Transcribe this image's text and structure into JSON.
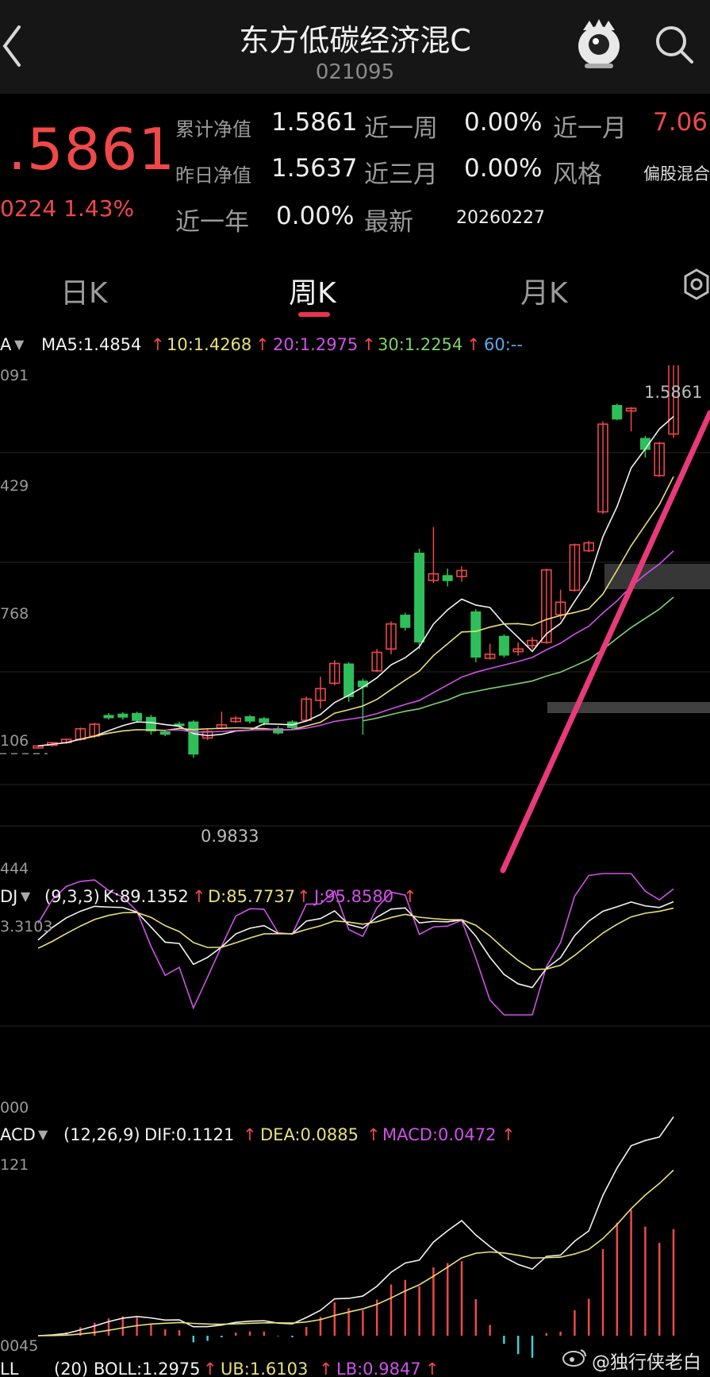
{
  "header": {
    "title": "东方低碳经济混C",
    "code": "021095"
  },
  "quote": {
    "price": ".5861",
    "change": "0224 1.43%",
    "cum_nav_label": "累计净值",
    "cum_nav_value": "1.5861",
    "prev_nav_label": "昨日净值",
    "prev_nav_value": "1.5637",
    "week_label": "近一周",
    "week_value": "0.00%",
    "month_label": "近一月",
    "month_value": "7.06",
    "three_month_label": "近三月",
    "three_month_value": "0.00%",
    "style_label": "风格",
    "style_value": "偏股混合",
    "year_label": "近一年",
    "year_value": "0.00%",
    "latest_label": "最新",
    "latest_value": "20260227"
  },
  "tabs": {
    "day": "日K",
    "week": "周K",
    "month": "月K"
  },
  "ma_bar": {
    "prefix": "A",
    "ma5": "MA5:1.4854",
    "ma10": "10:1.4268",
    "ma20": "20:1.2975",
    "ma30": "30:1.2254",
    "ma60": "60:--",
    "arrow": "↑"
  },
  "price_axis": {
    "top": "091",
    "l1": "429",
    "l2": "768",
    "l3": "106",
    "bottom": "444",
    "high_label": "1.5861",
    "low_label": "0.9833"
  },
  "kdj_bar": {
    "prefix": "DJ",
    "params": "(9,3,3)",
    "k": "K:89.1352",
    "d": "D:85.7737",
    "j": "J:95.8580",
    "arrow": "↑"
  },
  "kdj_axis": {
    "top": "3.3103",
    "bottom": "000"
  },
  "macd_bar": {
    "prefix": "ACD",
    "params": "(12,26,9)",
    "dif": "DIF:0.1121",
    "dea": "DEA:0.0885",
    "macd": "MACD:0.0472",
    "arrow": "↑"
  },
  "macd_axis": {
    "top": "121",
    "bottom": "0045"
  },
  "boll_bar": {
    "prefix": "LL",
    "params": "(20)",
    "boll": "BOLL:1.2975",
    "ub": "UB:1.6103",
    "lb": "LB:0.9847",
    "arrow": "↑"
  },
  "watermark": "@独行侠老白",
  "colors": {
    "up": "#f04848",
    "down": "#2fbf5a",
    "accent": "#e8334f",
    "ma5": "#f2f2f2",
    "ma10": "#e8e07a",
    "ma20": "#d052e8",
    "ma30": "#7fd16b",
    "ma60": "#5aa8e8"
  },
  "chart_data": {
    "type": "candlestick",
    "period": "weekly",
    "candles": [
      {
        "o": 1.0,
        "c": 1.003,
        "h": 1.004,
        "l": 0.999
      },
      {
        "o": 1.004,
        "c": 1.008,
        "h": 1.009,
        "l": 1.002
      },
      {
        "o": 1.008,
        "c": 1.013,
        "h": 1.014,
        "l": 1.006
      },
      {
        "o": 1.013,
        "c": 1.029,
        "h": 1.031,
        "l": 1.011
      },
      {
        "o": 1.018,
        "c": 1.036,
        "h": 1.038,
        "l": 1.015
      },
      {
        "o": 1.05,
        "c": 1.045,
        "h": 1.053,
        "l": 1.043
      },
      {
        "o": 1.052,
        "c": 1.046,
        "h": 1.054,
        "l": 1.043
      },
      {
        "o": 1.053,
        "c": 1.041,
        "h": 1.055,
        "l": 1.038
      },
      {
        "o": 1.047,
        "c": 1.025,
        "h": 1.05,
        "l": 1.02
      },
      {
        "o": 1.025,
        "c": 1.02,
        "h": 1.027,
        "l": 1.018
      },
      {
        "o": 1.037,
        "c": 1.033,
        "h": 1.04,
        "l": 1.03
      },
      {
        "o": 1.04,
        "c": 0.99,
        "h": 1.042,
        "l": 0.985
      },
      {
        "o": 1.015,
        "c": 1.025,
        "h": 1.03,
        "l": 1.012
      },
      {
        "o": 1.03,
        "c": 1.035,
        "h": 1.055,
        "l": 1.028
      },
      {
        "o": 1.04,
        "c": 1.045,
        "h": 1.048,
        "l": 1.038
      },
      {
        "o": 1.048,
        "c": 1.04,
        "h": 1.05,
        "l": 1.037
      },
      {
        "o": 1.045,
        "c": 1.038,
        "h": 1.047,
        "l": 1.034
      },
      {
        "o": 1.03,
        "c": 1.022,
        "h": 1.033,
        "l": 1.02
      },
      {
        "o": 1.04,
        "c": 1.03,
        "h": 1.042,
        "l": 1.027
      },
      {
        "o": 1.042,
        "c": 1.074,
        "h": 1.078,
        "l": 1.04
      },
      {
        "o": 1.072,
        "c": 1.09,
        "h": 1.108,
        "l": 1.06
      },
      {
        "o": 1.098,
        "c": 1.128,
        "h": 1.133,
        "l": 1.095
      },
      {
        "o": 1.128,
        "c": 1.077,
        "h": 1.13,
        "l": 1.07
      },
      {
        "o": 1.102,
        "c": 1.092,
        "h": 1.105,
        "l": 1.02
      },
      {
        "o": 1.117,
        "c": 1.145,
        "h": 1.15,
        "l": 1.115
      },
      {
        "o": 1.15,
        "c": 1.188,
        "h": 1.192,
        "l": 1.142
      },
      {
        "o": 1.202,
        "c": 1.182,
        "h": 1.205,
        "l": 1.178
      },
      {
        "o": 1.296,
        "c": 1.16,
        "h": 1.302,
        "l": 1.15
      },
      {
        "o": 1.254,
        "c": 1.264,
        "h": 1.335,
        "l": 1.25
      },
      {
        "o": 1.262,
        "c": 1.253,
        "h": 1.272,
        "l": 1.245
      },
      {
        "o": 1.26,
        "c": 1.269,
        "h": 1.275,
        "l": 1.252
      },
      {
        "o": 1.207,
        "c": 1.137,
        "h": 1.21,
        "l": 1.13
      },
      {
        "o": 1.136,
        "c": 1.142,
        "h": 1.158,
        "l": 1.134
      },
      {
        "o": 1.17,
        "c": 1.14,
        "h": 1.172,
        "l": 1.137
      },
      {
        "o": 1.146,
        "c": 1.15,
        "h": 1.16,
        "l": 1.14
      },
      {
        "o": 1.155,
        "c": 1.163,
        "h": 1.168,
        "l": 1.15
      },
      {
        "o": 1.16,
        "c": 1.27,
        "h": 1.272,
        "l": 1.158
      },
      {
        "o": 1.202,
        "c": 1.221,
        "h": 1.24,
        "l": 1.195
      },
      {
        "o": 1.239,
        "c": 1.308,
        "h": 1.31,
        "l": 1.237
      },
      {
        "o": 1.299,
        "c": 1.311,
        "h": 1.314,
        "l": 1.297
      },
      {
        "o": 1.358,
        "c": 1.491,
        "h": 1.495,
        "l": 1.355
      },
      {
        "o": 1.52,
        "c": 1.498,
        "h": 1.522,
        "l": 1.497
      },
      {
        "o": 1.511,
        "c": 1.515,
        "h": 1.517,
        "l": 1.48
      },
      {
        "o": 1.47,
        "c": 1.452,
        "h": 1.473,
        "l": 1.44
      },
      {
        "o": 1.413,
        "c": 1.462,
        "h": 1.464,
        "l": 1.411
      },
      {
        "o": 1.476,
        "c": 1.586,
        "h": 1.586,
        "l": 1.47
      }
    ],
    "ma5_last": 1.4854,
    "ma10_last": 1.4268,
    "ma20_last": 1.2975,
    "ma30_last": 1.2254,
    "y_max_label": 1.5861,
    "y_min_label": 0.9833,
    "kdj": {
      "k_last": 89.1352,
      "d_last": 85.7737,
      "j_last": 95.858
    },
    "macd": {
      "dif_last": 0.1121,
      "dea_last": 0.0885,
      "macd_last": 0.0472
    }
  }
}
